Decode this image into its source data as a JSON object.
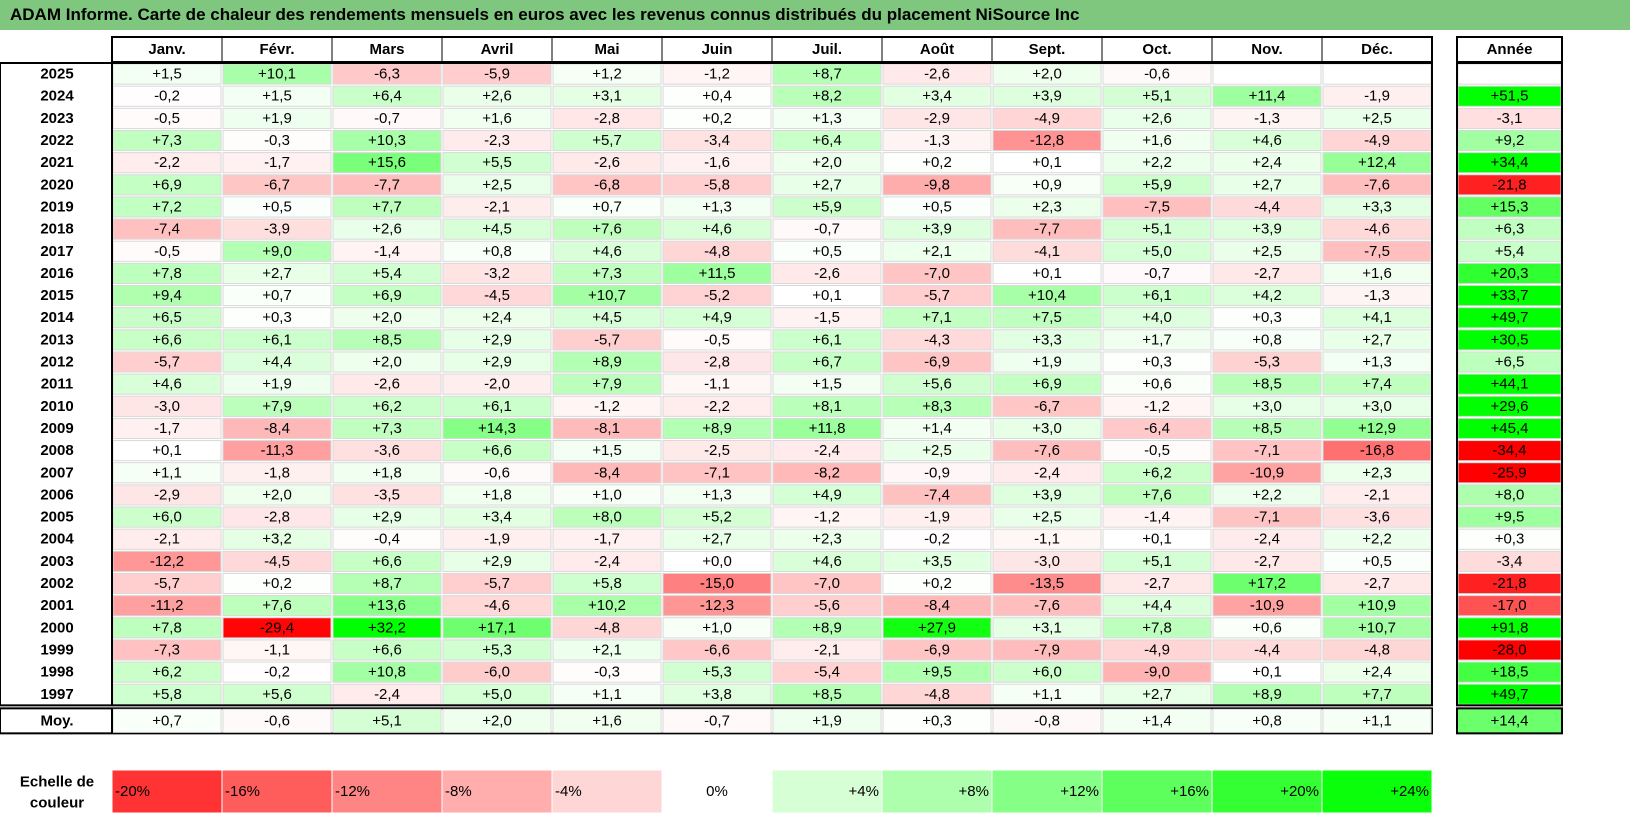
{
  "title": "ADAM Informe. Carte de chaleur des rendements mensuels en euros avec les revenus connus distribués du placement NiSource Inc",
  "chart_data": {
    "type": "heatmap",
    "columns": [
      "Janv.",
      "Févr.",
      "Mars",
      "Avril",
      "Mai",
      "Juin",
      "Juil.",
      "Août",
      "Sept.",
      "Oct.",
      "Nov.",
      "Déc."
    ],
    "year_header": "Année",
    "rows": [
      {
        "year": "2025",
        "values": [
          "+1,5",
          "+10,1",
          "-6,3",
          "-5,9",
          "+1,2",
          "-1,2",
          "+8,7",
          "-2,6",
          "+2,0",
          "-0,6",
          "",
          ""
        ],
        "annual": ""
      },
      {
        "year": "2024",
        "values": [
          "-0,2",
          "+1,5",
          "+6,4",
          "+2,6",
          "+3,1",
          "+0,4",
          "+8,2",
          "+3,4",
          "+3,9",
          "+5,1",
          "+11,4",
          "-1,9"
        ],
        "annual": "+51,5"
      },
      {
        "year": "2023",
        "values": [
          "-0,5",
          "+1,9",
          "-0,7",
          "+1,6",
          "-2,8",
          "+0,2",
          "+1,3",
          "-2,9",
          "-4,9",
          "+2,6",
          "-1,3",
          "+2,5"
        ],
        "annual": "-3,1"
      },
      {
        "year": "2022",
        "values": [
          "+7,3",
          "-0,3",
          "+10,3",
          "-2,3",
          "+5,7",
          "-3,4",
          "+6,4",
          "-1,3",
          "-12,8",
          "+1,6",
          "+4,6",
          "-4,9"
        ],
        "annual": "+9,2"
      },
      {
        "year": "2021",
        "values": [
          "-2,2",
          "-1,7",
          "+15,6",
          "+5,5",
          "-2,6",
          "-1,6",
          "+2,0",
          "+0,2",
          "+0,1",
          "+2,2",
          "+2,4",
          "+12,4"
        ],
        "annual": "+34,4"
      },
      {
        "year": "2020",
        "values": [
          "+6,9",
          "-6,7",
          "-7,7",
          "+2,5",
          "-6,8",
          "-5,8",
          "+2,7",
          "-9,8",
          "+0,9",
          "+5,9",
          "+2,7",
          "-7,6"
        ],
        "annual": "-21,8"
      },
      {
        "year": "2019",
        "values": [
          "+7,2",
          "+0,5",
          "+7,7",
          "-2,1",
          "+0,7",
          "+1,3",
          "+5,9",
          "+0,5",
          "+2,3",
          "-7,5",
          "-4,4",
          "+3,3"
        ],
        "annual": "+15,3"
      },
      {
        "year": "2018",
        "values": [
          "-7,4",
          "-3,9",
          "+2,6",
          "+4,5",
          "+7,6",
          "+4,6",
          "-0,7",
          "+3,9",
          "-7,7",
          "+5,1",
          "+3,9",
          "-4,6"
        ],
        "annual": "+6,3"
      },
      {
        "year": "2017",
        "values": [
          "-0,5",
          "+9,0",
          "-1,4",
          "+0,8",
          "+4,6",
          "-4,8",
          "+0,5",
          "+2,1",
          "-4,1",
          "+5,0",
          "+2,5",
          "-7,5"
        ],
        "annual": "+5,4"
      },
      {
        "year": "2016",
        "values": [
          "+7,8",
          "+2,7",
          "+5,4",
          "-3,2",
          "+7,3",
          "+11,5",
          "-2,6",
          "-7,0",
          "+0,1",
          "-0,7",
          "-2,7",
          "+1,6"
        ],
        "annual": "+20,3"
      },
      {
        "year": "2015",
        "values": [
          "+9,4",
          "+0,7",
          "+6,9",
          "-4,5",
          "+10,7",
          "-5,2",
          "+0,1",
          "-5,7",
          "+10,4",
          "+6,1",
          "+4,2",
          "-1,3"
        ],
        "annual": "+33,7"
      },
      {
        "year": "2014",
        "values": [
          "+6,5",
          "+0,3",
          "+2,0",
          "+2,4",
          "+4,5",
          "+4,9",
          "-1,5",
          "+7,1",
          "+7,5",
          "+4,0",
          "+0,3",
          "+4,1"
        ],
        "annual": "+49,7"
      },
      {
        "year": "2013",
        "values": [
          "+6,6",
          "+6,1",
          "+8,5",
          "+2,9",
          "-5,7",
          "-0,5",
          "+6,1",
          "-4,3",
          "+3,3",
          "+1,7",
          "+0,8",
          "+2,7"
        ],
        "annual": "+30,5"
      },
      {
        "year": "2012",
        "values": [
          "-5,7",
          "+4,4",
          "+2,0",
          "+2,9",
          "+8,9",
          "-2,8",
          "+6,7",
          "-6,9",
          "+1,9",
          "+0,3",
          "-5,3",
          "+1,3"
        ],
        "annual": "+6,5"
      },
      {
        "year": "2011",
        "values": [
          "+4,6",
          "+1,9",
          "-2,6",
          "-2,0",
          "+7,9",
          "-1,1",
          "+1,5",
          "+5,6",
          "+6,9",
          "+0,6",
          "+8,5",
          "+7,4"
        ],
        "annual": "+44,1"
      },
      {
        "year": "2010",
        "values": [
          "-3,0",
          "+7,9",
          "+6,2",
          "+6,1",
          "-1,2",
          "-2,2",
          "+8,1",
          "+8,3",
          "-6,7",
          "-1,2",
          "+3,0",
          "+3,0"
        ],
        "annual": "+29,6"
      },
      {
        "year": "2009",
        "values": [
          "-1,7",
          "-8,4",
          "+7,3",
          "+14,3",
          "-8,1",
          "+8,9",
          "+11,8",
          "+1,4",
          "+3,0",
          "-6,4",
          "+8,5",
          "+12,9"
        ],
        "annual": "+45,4"
      },
      {
        "year": "2008",
        "values": [
          "+0,1",
          "-11,3",
          "-3,6",
          "+6,6",
          "+1,5",
          "-2,5",
          "-2,4",
          "+2,5",
          "-7,6",
          "-0,5",
          "-7,1",
          "-16,8"
        ],
        "annual": "-34,4"
      },
      {
        "year": "2007",
        "values": [
          "+1,1",
          "-1,8",
          "+1,8",
          "-0,6",
          "-8,4",
          "-7,1",
          "-8,2",
          "-0,9",
          "-2,4",
          "+6,2",
          "-10,9",
          "+2,3"
        ],
        "annual": "-25,9"
      },
      {
        "year": "2006",
        "values": [
          "-2,9",
          "+2,0",
          "-3,5",
          "+1,8",
          "+1,0",
          "+1,3",
          "+4,9",
          "-7,4",
          "+3,9",
          "+7,6",
          "+2,2",
          "-2,1"
        ],
        "annual": "+8,0"
      },
      {
        "year": "2005",
        "values": [
          "+6,0",
          "-2,8",
          "+2,9",
          "+3,4",
          "+8,0",
          "+5,2",
          "-1,2",
          "-1,9",
          "+2,5",
          "-1,4",
          "-7,1",
          "-3,6"
        ],
        "annual": "+9,5"
      },
      {
        "year": "2004",
        "values": [
          "-2,1",
          "+3,2",
          "-0,4",
          "-1,9",
          "-1,7",
          "+2,7",
          "+2,3",
          "-0,2",
          "-1,1",
          "+0,1",
          "-2,4",
          "+2,2"
        ],
        "annual": "+0,3"
      },
      {
        "year": "2003",
        "values": [
          "-12,2",
          "-4,5",
          "+6,6",
          "+2,9",
          "-2,4",
          "+0,0",
          "+4,6",
          "+3,5",
          "-3,0",
          "+5,1",
          "-2,7",
          "+0,5"
        ],
        "annual": "-3,4"
      },
      {
        "year": "2002",
        "values": [
          "-5,7",
          "+0,2",
          "+8,7",
          "-5,7",
          "+5,8",
          "-15,0",
          "-7,0",
          "+0,2",
          "-13,5",
          "-2,7",
          "+17,2",
          "-2,7"
        ],
        "annual": "-21,8"
      },
      {
        "year": "2001",
        "values": [
          "-11,2",
          "+7,6",
          "+13,6",
          "-4,6",
          "+10,2",
          "-12,3",
          "-5,6",
          "-8,4",
          "-7,6",
          "+4,4",
          "-10,9",
          "+10,9"
        ],
        "annual": "-17,0"
      },
      {
        "year": "2000",
        "values": [
          "+7,8",
          "-29,4",
          "+32,2",
          "+17,1",
          "-4,8",
          "+1,0",
          "+8,9",
          "+27,9",
          "+3,1",
          "+7,8",
          "+0,6",
          "+10,7"
        ],
        "annual": "+91,8"
      },
      {
        "year": "1999",
        "values": [
          "-7,3",
          "-1,1",
          "+6,6",
          "+5,3",
          "+2,1",
          "-6,6",
          "-2,1",
          "-6,9",
          "-7,9",
          "-4,9",
          "-4,4",
          "-4,8"
        ],
        "annual": "-28,0"
      },
      {
        "year": "1998",
        "values": [
          "+6,2",
          "-0,2",
          "+10,8",
          "-6,0",
          "-0,3",
          "+5,3",
          "-5,4",
          "+9,5",
          "+6,0",
          "-9,0",
          "+0,1",
          "+2,4"
        ],
        "annual": "+18,5"
      },
      {
        "year": "1997",
        "values": [
          "+5,8",
          "+5,6",
          "-2,4",
          "+5,0",
          "+1,1",
          "+3,8",
          "+8,5",
          "-4,8",
          "+1,1",
          "+2,7",
          "+8,9",
          "+7,7"
        ],
        "annual": "+49,7"
      }
    ],
    "average": {
      "label": "Moy.",
      "values": [
        "+0,7",
        "-0,6",
        "+5,1",
        "+2,0",
        "+1,6",
        "-0,7",
        "+1,9",
        "+0,3",
        "-0,8",
        "+1,4",
        "+0,8",
        "+1,1"
      ],
      "annual": "+14,4"
    },
    "scale": {
      "label_lines": [
        "Echelle de",
        "couleur"
      ],
      "stops": [
        "-20%",
        "-16%",
        "-12%",
        "-8%",
        "-4%",
        "0%",
        "+4%",
        "+8%",
        "+12%",
        "+16%",
        "+20%",
        "+24%"
      ],
      "stop_values": [
        -20,
        -16,
        -12,
        -8,
        -4,
        0,
        4,
        8,
        12,
        16,
        20,
        24
      ]
    },
    "colors": {
      "negative": "#ff0000",
      "neutral": "#ffffff",
      "positive": "#00ff00",
      "title_bg": "#7fc77f"
    }
  }
}
